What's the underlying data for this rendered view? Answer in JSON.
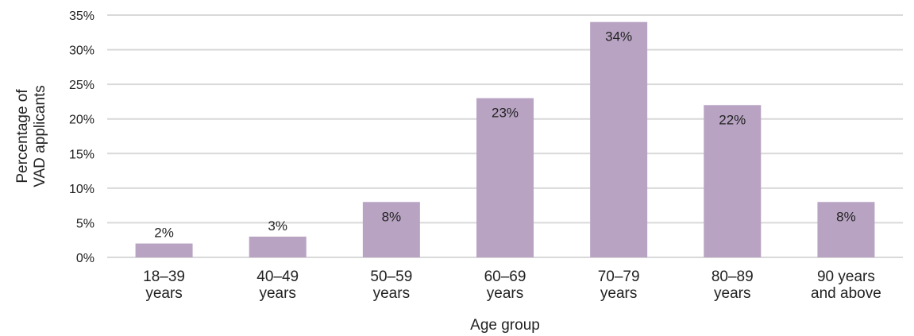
{
  "chart_data": {
    "type": "bar",
    "categories": [
      [
        "18–39",
        "years"
      ],
      [
        "40–49",
        "years"
      ],
      [
        "50–59",
        "years"
      ],
      [
        "60–69",
        "years"
      ],
      [
        "70–79",
        "years"
      ],
      [
        "80–89",
        "years"
      ],
      [
        "90 years",
        "and above"
      ]
    ],
    "values": [
      2,
      3,
      8,
      23,
      34,
      22,
      8
    ],
    "data_labels": [
      "2%",
      "3%",
      "8%",
      "23%",
      "34%",
      "22%",
      "8%"
    ],
    "xlabel": "Age group",
    "ylabel": [
      "Percentage of",
      "VAD applicants"
    ],
    "ylim": [
      0,
      35
    ],
    "yticks": [
      0,
      5,
      10,
      15,
      20,
      25,
      30,
      35
    ],
    "ytick_labels": [
      "0%",
      "5%",
      "10%",
      "15%",
      "20%",
      "25%",
      "30%",
      "35%"
    ],
    "grid": true,
    "legend": "none",
    "colors": {
      "bar": "#b8a3c3",
      "grid": "#d9d9d9",
      "text": "#222222"
    }
  }
}
